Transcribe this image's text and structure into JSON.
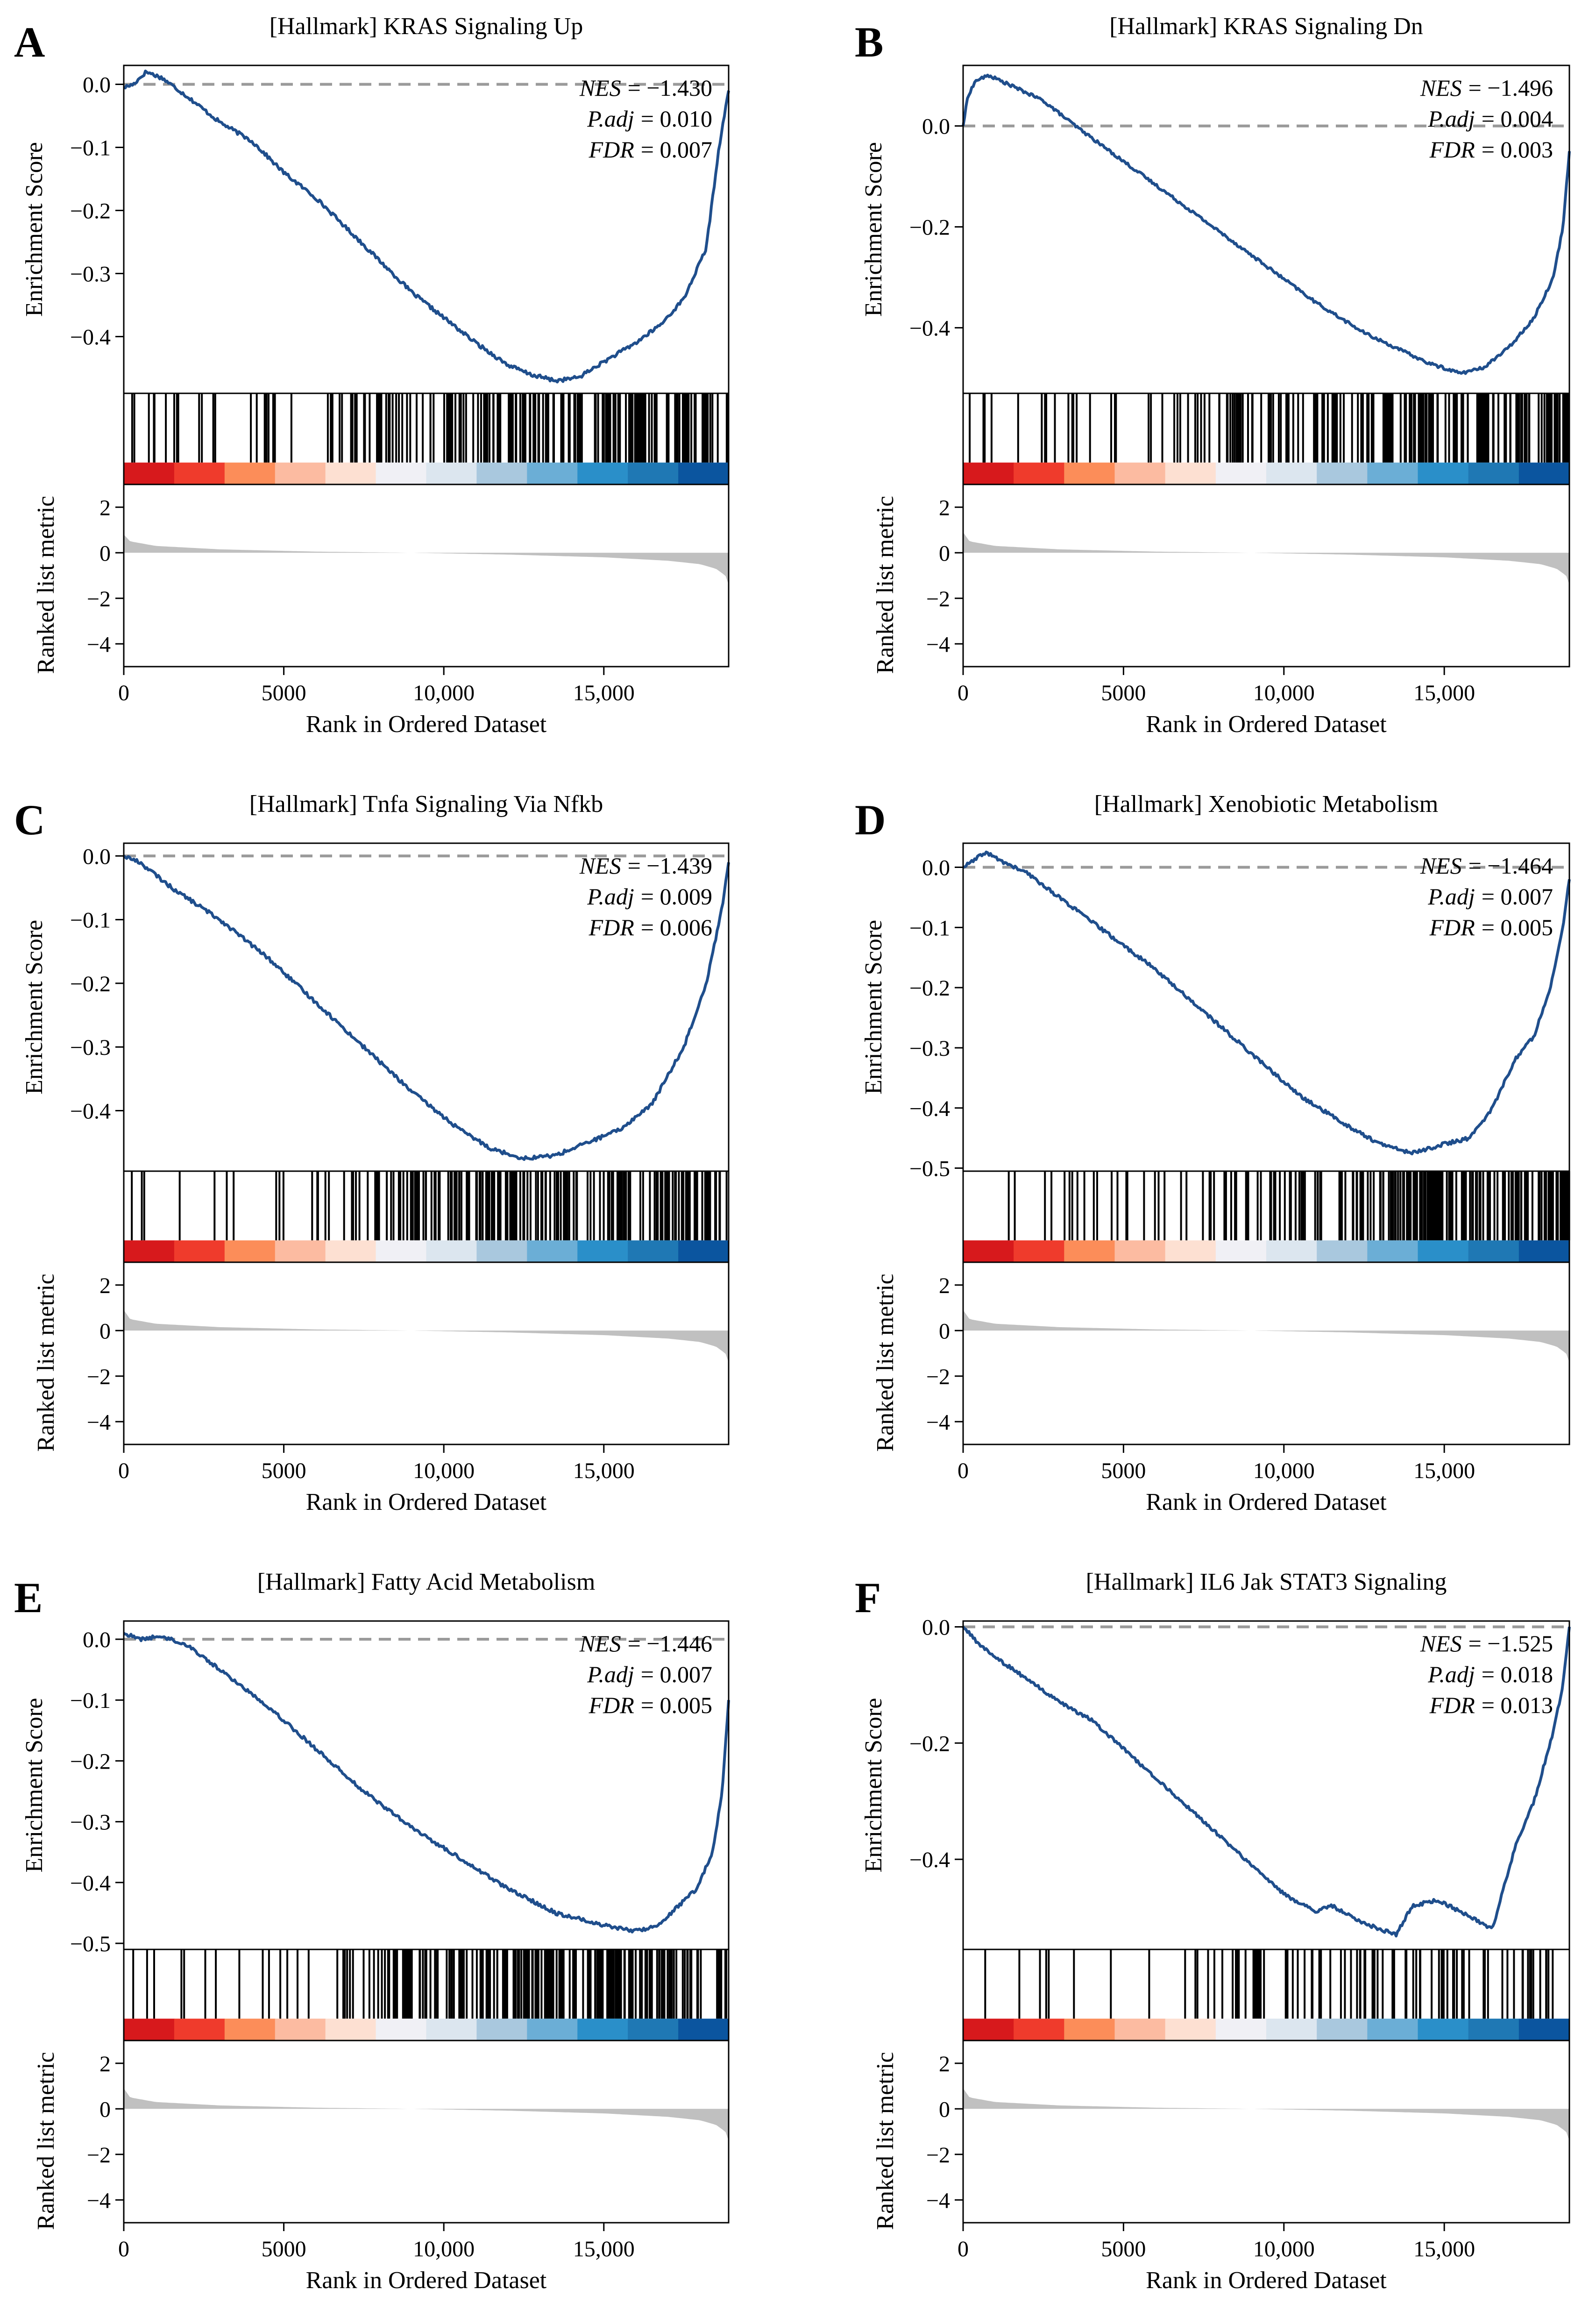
{
  "figure": {
    "title": "GSEA enrichment plots (Hallmark gene sets)"
  },
  "chart_data": [
    {
      "type": "line",
      "panel": "A",
      "title": "[Hallmark] KRAS Signaling Up",
      "xlabel": "Rank in Ordered Dataset",
      "ylabel_es": "Enrichment Score",
      "ylabel_metric": "Ranked list metric",
      "xlim": [
        0,
        18900
      ],
      "x_ticks": [
        0,
        5000,
        10000,
        15000
      ],
      "x_tick_labels": [
        "0",
        "5000",
        "10,000",
        "15,000"
      ],
      "es_ylim": [
        -0.49,
        0.03
      ],
      "es_ticks": [
        0.0,
        -0.1,
        -0.2,
        -0.3,
        -0.4
      ],
      "es_tick_labels": [
        "0.0",
        "−0.1",
        "−0.2",
        "−0.3",
        "−0.4"
      ],
      "metric_ylim": [
        -5,
        3
      ],
      "metric_ticks": [
        2,
        0,
        -2,
        -4
      ],
      "metric_tick_labels": [
        "2",
        "0",
        "−2",
        "−4"
      ],
      "stats": {
        "nes_label": "NES",
        "nes": "= −1.430",
        "padj_label": "P.adj",
        "padj": "= 0.010",
        "fdr_label": "FDR",
        "fdr": "= 0.007"
      },
      "es_curve": {
        "x": [
          0,
          300,
          700,
          1200,
          2000,
          3000,
          4000,
          5000,
          6000,
          7000,
          8000,
          9000,
          10000,
          11000,
          12000,
          12700,
          13500,
          14200,
          15000,
          16000,
          16800,
          17500,
          18200,
          18600,
          18900
        ],
        "y": [
          -0.005,
          0.0,
          0.02,
          0.01,
          -0.02,
          -0.06,
          -0.09,
          -0.14,
          -0.18,
          -0.23,
          -0.28,
          -0.33,
          -0.37,
          -0.41,
          -0.445,
          -0.46,
          -0.47,
          -0.465,
          -0.44,
          -0.41,
          -0.38,
          -0.34,
          -0.26,
          -0.1,
          -0.01
        ]
      },
      "metric_curve": {
        "x": [
          0,
          200,
          1000,
          3000,
          6000,
          9000,
          12000,
          15000,
          17000,
          18000,
          18500,
          18800,
          18900
        ],
        "y": [
          0.8,
          0.5,
          0.3,
          0.15,
          0.05,
          0.0,
          -0.08,
          -0.2,
          -0.35,
          -0.5,
          -0.7,
          -1.0,
          -1.4
        ]
      }
    },
    {
      "type": "line",
      "panel": "B",
      "title": "[Hallmark] KRAS Signaling Dn",
      "xlabel": "Rank in Ordered Dataset",
      "ylabel_es": "Enrichment Score",
      "ylabel_metric": "Ranked list metric",
      "xlim": [
        0,
        18900
      ],
      "x_ticks": [
        0,
        5000,
        10000,
        15000
      ],
      "x_tick_labels": [
        "0",
        "5000",
        "10,000",
        "15,000"
      ],
      "es_ylim": [
        -0.53,
        0.12
      ],
      "es_ticks": [
        0.0,
        -0.2,
        -0.4
      ],
      "es_tick_labels": [
        "0.0",
        "−0.2",
        "−0.4"
      ],
      "metric_ylim": [
        -5,
        3
      ],
      "metric_ticks": [
        2,
        0,
        -2,
        -4
      ],
      "metric_tick_labels": [
        "2",
        "0",
        "−2",
        "−4"
      ],
      "stats": {
        "nes_label": "NES",
        "nes": "= −1.496",
        "padj_label": "P.adj",
        "padj": "= 0.004",
        "fdr_label": "FDR",
        "fdr": "= 0.003"
      },
      "es_curve": {
        "x": [
          0,
          150,
          400,
          800,
          1500,
          2500,
          3500,
          5000,
          6500,
          8000,
          9500,
          11000,
          12500,
          13500,
          14500,
          15500,
          16200,
          17000,
          17800,
          18400,
          18700,
          18900
        ],
        "y": [
          0.0,
          0.06,
          0.09,
          0.1,
          0.08,
          0.05,
          0.0,
          -0.07,
          -0.14,
          -0.21,
          -0.28,
          -0.35,
          -0.41,
          -0.44,
          -0.47,
          -0.49,
          -0.48,
          -0.44,
          -0.38,
          -0.3,
          -0.2,
          -0.05
        ]
      },
      "metric_curve": {
        "x": [
          0,
          200,
          1000,
          3000,
          6000,
          9000,
          12000,
          15000,
          17000,
          18000,
          18500,
          18800,
          18900
        ],
        "y": [
          0.9,
          0.5,
          0.3,
          0.15,
          0.05,
          0.0,
          -0.08,
          -0.2,
          -0.35,
          -0.5,
          -0.7,
          -1.0,
          -1.4
        ]
      }
    },
    {
      "type": "line",
      "panel": "C",
      "title": "[Hallmark] Tnfa Signaling Via Nfkb",
      "xlabel": "Rank in Ordered Dataset",
      "ylabel_es": "Enrichment Score",
      "ylabel_metric": "Ranked list metric",
      "xlim": [
        0,
        18900
      ],
      "x_ticks": [
        0,
        5000,
        10000,
        15000
      ],
      "x_tick_labels": [
        "0",
        "5000",
        "10,000",
        "15,000"
      ],
      "es_ylim": [
        -0.495,
        0.02
      ],
      "es_ticks": [
        0.0,
        -0.1,
        -0.2,
        -0.3,
        -0.4
      ],
      "es_tick_labels": [
        "0.0",
        "−0.1",
        "−0.2",
        "−0.3",
        "−0.4"
      ],
      "metric_ylim": [
        -5,
        3
      ],
      "metric_ticks": [
        2,
        0,
        -2,
        -4
      ],
      "metric_tick_labels": [
        "2",
        "0",
        "−2",
        "−4"
      ],
      "stats": {
        "nes_label": "NES",
        "nes": "= −1.439",
        "padj_label": "P.adj",
        "padj": "= 0.009",
        "fdr_label": "FDR",
        "fdr": "= 0.006"
      },
      "es_curve": {
        "x": [
          0,
          500,
          1500,
          3000,
          4500,
          6000,
          7500,
          9000,
          10500,
          11500,
          12500,
          13500,
          14500,
          15500,
          16500,
          17500,
          18200,
          18700,
          18900
        ],
        "y": [
          0.0,
          -0.01,
          -0.05,
          -0.1,
          -0.16,
          -0.23,
          -0.3,
          -0.37,
          -0.43,
          -0.46,
          -0.475,
          -0.47,
          -0.45,
          -0.43,
          -0.39,
          -0.3,
          -0.2,
          -0.08,
          -0.01
        ]
      },
      "metric_curve": {
        "x": [
          0,
          200,
          1000,
          3000,
          6000,
          9000,
          12000,
          15000,
          17000,
          18000,
          18500,
          18800,
          18900
        ],
        "y": [
          0.9,
          0.5,
          0.3,
          0.15,
          0.05,
          0.0,
          -0.08,
          -0.2,
          -0.35,
          -0.5,
          -0.7,
          -1.0,
          -1.4
        ]
      }
    },
    {
      "type": "line",
      "panel": "D",
      "title": "[Hallmark] Xenobiotic Metabolism",
      "xlabel": "Rank in Ordered Dataset",
      "ylabel_es": "Enrichment Score",
      "ylabel_metric": "Ranked list metric",
      "xlim": [
        0,
        18900
      ],
      "x_ticks": [
        0,
        5000,
        10000,
        15000
      ],
      "x_tick_labels": [
        "0",
        "5000",
        "10,000",
        "15,000"
      ],
      "es_ylim": [
        -0.505,
        0.04
      ],
      "es_ticks": [
        0.0,
        -0.1,
        -0.2,
        -0.3,
        -0.4,
        -0.5
      ],
      "es_tick_labels": [
        "0.0",
        "−0.1",
        "−0.2",
        "−0.3",
        "−0.4",
        "−0.5"
      ],
      "metric_ylim": [
        -5,
        3
      ],
      "metric_ticks": [
        2,
        0,
        -2,
        -4
      ],
      "metric_tick_labels": [
        "2",
        "0",
        "−2",
        "−4"
      ],
      "stats": {
        "nes_label": "NES",
        "nes": "= −1.464",
        "padj_label": "P.adj",
        "padj": "= 0.007",
        "fdr_label": "FDR",
        "fdr": "= 0.005"
      },
      "es_curve": {
        "x": [
          0,
          300,
          700,
          1200,
          2000,
          3000,
          4500,
          6000,
          7500,
          9000,
          10500,
          12000,
          13000,
          14000,
          15000,
          15800,
          16500,
          17200,
          17800,
          18300,
          18700,
          18900
        ],
        "y": [
          0.0,
          0.01,
          0.025,
          0.01,
          -0.01,
          -0.05,
          -0.11,
          -0.17,
          -0.24,
          -0.31,
          -0.38,
          -0.43,
          -0.46,
          -0.475,
          -0.46,
          -0.45,
          -0.4,
          -0.32,
          -0.28,
          -0.2,
          -0.1,
          -0.02
        ]
      },
      "metric_curve": {
        "x": [
          0,
          200,
          1000,
          3000,
          6000,
          9000,
          12000,
          15000,
          17000,
          18000,
          18500,
          18800,
          18900
        ],
        "y": [
          0.9,
          0.5,
          0.3,
          0.15,
          0.05,
          0.0,
          -0.08,
          -0.2,
          -0.35,
          -0.5,
          -0.7,
          -1.0,
          -1.4
        ]
      }
    },
    {
      "type": "line",
      "panel": "E",
      "title": "[Hallmark] Fatty Acid Metabolism",
      "xlabel": "Rank in Ordered Dataset",
      "ylabel_es": "Enrichment Score",
      "ylabel_metric": "Ranked list metric",
      "xlim": [
        0,
        18900
      ],
      "x_ticks": [
        0,
        5000,
        10000,
        15000
      ],
      "x_tick_labels": [
        "0",
        "5000",
        "10,000",
        "15,000"
      ],
      "es_ylim": [
        -0.51,
        0.03
      ],
      "es_ticks": [
        0.0,
        -0.1,
        -0.2,
        -0.3,
        -0.4,
        -0.5
      ],
      "es_tick_labels": [
        "0.0",
        "−0.1",
        "−0.2",
        "−0.3",
        "−0.4",
        "−0.5"
      ],
      "metric_ylim": [
        -5,
        3
      ],
      "metric_ticks": [
        2,
        0,
        -2,
        -4
      ],
      "metric_tick_labels": [
        "2",
        "0",
        "−2",
        "−4"
      ],
      "stats": {
        "nes_label": "NES",
        "nes": "= −1.446",
        "padj_label": "P.adj",
        "padj": "= 0.007",
        "fdr_label": "FDR",
        "fdr": "= 0.005"
      },
      "es_curve": {
        "x": [
          0,
          500,
          1200,
          2000,
          3000,
          4500,
          6000,
          7500,
          9000,
          10500,
          12000,
          13500,
          15000,
          16000,
          16700,
          17300,
          17900,
          18400,
          18700,
          18900
        ],
        "y": [
          0.01,
          0.0,
          0.005,
          -0.01,
          -0.05,
          -0.11,
          -0.18,
          -0.25,
          -0.31,
          -0.36,
          -0.41,
          -0.45,
          -0.47,
          -0.48,
          -0.47,
          -0.44,
          -0.41,
          -0.35,
          -0.25,
          -0.1
        ]
      },
      "metric_curve": {
        "x": [
          0,
          200,
          1000,
          3000,
          6000,
          9000,
          12000,
          15000,
          17000,
          18000,
          18500,
          18800,
          18900
        ],
        "y": [
          0.9,
          0.5,
          0.3,
          0.15,
          0.05,
          0.0,
          -0.08,
          -0.2,
          -0.35,
          -0.5,
          -0.7,
          -1.0,
          -1.4
        ]
      }
    },
    {
      "type": "line",
      "panel": "F",
      "title": "[Hallmark] IL6 Jak STAT3 Signaling",
      "xlabel": "Rank in Ordered Dataset",
      "ylabel_es": "Enrichment Score",
      "ylabel_metric": "Ranked list metric",
      "xlim": [
        0,
        18900
      ],
      "x_ticks": [
        0,
        5000,
        10000,
        15000
      ],
      "x_tick_labels": [
        "0",
        "5000",
        "10,000",
        "15,000"
      ],
      "es_ylim": [
        -0.555,
        0.01
      ],
      "es_ticks": [
        0.0,
        -0.2,
        -0.4
      ],
      "es_tick_labels": [
        "0.0",
        "−0.2",
        "−0.4"
      ],
      "metric_ylim": [
        -5,
        3
      ],
      "metric_ticks": [
        2,
        0,
        -2,
        -4
      ],
      "metric_tick_labels": [
        "2",
        "0",
        "−2",
        "−4"
      ],
      "stats": {
        "nes_label": "NES",
        "nes": "= −1.525",
        "padj_label": "P.adj",
        "padj": "= 0.018",
        "fdr_label": "FDR",
        "fdr": "= 0.013"
      },
      "es_curve": {
        "x": [
          0,
          500,
          1200,
          2000,
          3000,
          4000,
          5000,
          6000,
          7000,
          8000,
          9000,
          10000,
          11000,
          11500,
          12500,
          13500,
          14000,
          14800,
          15500,
          16500,
          17200,
          17800,
          18400,
          18700,
          18900
        ],
        "y": [
          0.0,
          -0.03,
          -0.06,
          -0.09,
          -0.13,
          -0.16,
          -0.21,
          -0.26,
          -0.31,
          -0.36,
          -0.41,
          -0.46,
          -0.49,
          -0.48,
          -0.51,
          -0.53,
          -0.48,
          -0.47,
          -0.49,
          -0.52,
          -0.38,
          -0.3,
          -0.18,
          -0.1,
          0.0
        ]
      },
      "metric_curve": {
        "x": [
          0,
          200,
          1000,
          3000,
          6000,
          9000,
          12000,
          15000,
          17000,
          18000,
          18500,
          18800,
          18900
        ],
        "y": [
          0.9,
          0.5,
          0.3,
          0.15,
          0.05,
          0.0,
          -0.08,
          -0.2,
          -0.35,
          -0.5,
          -0.7,
          -1.0,
          -1.4
        ]
      }
    }
  ],
  "colors": {
    "es_line": "#1f4e8c",
    "zero_line": "#9a9a9a",
    "metric_fill": "#c0c0c0",
    "axis": "#000000",
    "heat_scale": [
      "#d7191c",
      "#ef3b2c",
      "#fc8d59",
      "#fcbba1",
      "#fde0d2",
      "#f0f0f5",
      "#dce6ef",
      "#a9c8de",
      "#6baed6",
      "#2a8fc9",
      "#1f78b4",
      "#0b559f"
    ]
  }
}
